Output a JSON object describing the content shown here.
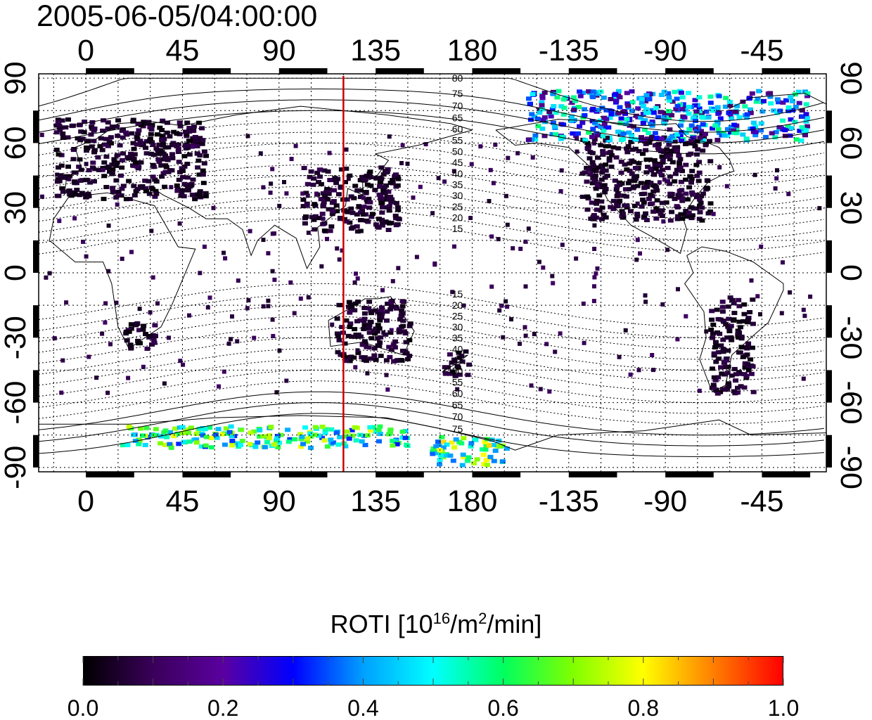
{
  "map": {
    "title": "2005-06-05/04:00:00",
    "lon_ticks": [
      "0",
      "45",
      "90",
      "135",
      "180",
      "-135",
      "-90",
      "-45"
    ],
    "lon_tick_values": [
      0,
      45,
      90,
      135,
      180,
      225,
      270,
      315
    ],
    "lat_ticks": [
      "90",
      "60",
      "30",
      "0",
      "-30",
      "-60",
      "-90"
    ],
    "lat_tick_values": [
      90,
      60,
      30,
      0,
      -30,
      -60,
      -90
    ],
    "lon_range": [
      -22,
      345
    ],
    "lat_range": [
      -92,
      92
    ],
    "grid": true,
    "meridian_marker_lon": 120,
    "meridian_marker_color": "#cc0000",
    "magnetic_lat_labels_north": [
      "80",
      "75",
      "70",
      "65",
      "60",
      "55",
      "50",
      "45",
      "40",
      "35",
      "30",
      "25",
      "20",
      "15"
    ],
    "magnetic_lat_labels_south": [
      "15",
      "20",
      "25",
      "30",
      "35",
      "40",
      "45",
      "50",
      "55",
      "60",
      "65",
      "70",
      "75"
    ]
  },
  "colorbar": {
    "title_prefix": "ROTI  [10",
    "title_exp1": "16",
    "title_mid": "/m",
    "title_exp2": "2",
    "title_suffix": "/min]",
    "ticks": [
      "0.0",
      "0.2",
      "0.4",
      "0.6",
      "0.8",
      "1.0"
    ],
    "tick_values": [
      0.0,
      0.2,
      0.4,
      0.6,
      0.8,
      1.0
    ],
    "range": [
      0.0,
      1.0
    ],
    "colors": [
      "#000000",
      "#3a005a",
      "#5a00a0",
      "#0000ff",
      "#00a0ff",
      "#00ffff",
      "#00ff60",
      "#80ff00",
      "#ffff00",
      "#ff8000",
      "#ff0000"
    ]
  },
  "chart_data": {
    "type": "heatmap",
    "title": "2005-06-05/04:00:00",
    "colorbar_label": "ROTI  [10^16/m^2/min]",
    "value_range": [
      0.0,
      1.0
    ],
    "lon_ticks": [
      "0",
      "45",
      "90",
      "135",
      "180",
      "-135",
      "-90",
      "-45"
    ],
    "lat_ticks": [
      "90",
      "60",
      "30",
      "0",
      "-30",
      "-60",
      "-90"
    ],
    "regions": [
      {
        "lon_range": [
          -15,
          55
        ],
        "lat_range": [
          35,
          72
        ],
        "roti": 0.05
      },
      {
        "lon_range": [
          100,
          145
        ],
        "lat_range": [
          20,
          50
        ],
        "roti": 0.05
      },
      {
        "lon_range": [
          230,
          290
        ],
        "lat_range": [
          25,
          65
        ],
        "roti": 0.05
      },
      {
        "lon_range": [
          290,
          310
        ],
        "lat_range": [
          -55,
          -10
        ],
        "roti": 0.05
      },
      {
        "lon_range": [
          115,
          150
        ],
        "lat_range": [
          -40,
          -12
        ],
        "roti": 0.05
      },
      {
        "lon_range": [
          165,
          178
        ],
        "lat_range": [
          -47,
          -35
        ],
        "roti": 0.05
      },
      {
        "lon_range": [
          17,
          32
        ],
        "lat_range": [
          -35,
          -22
        ],
        "roti": 0.05
      },
      {
        "lon_range": [
          205,
          335
        ],
        "lat_range": [
          62,
          85
        ],
        "roti": 0.35
      },
      {
        "lon_range": [
          15,
          150
        ],
        "lat_range": [
          -80,
          -70
        ],
        "roti": 0.55
      },
      {
        "lon_range": [
          160,
          195
        ],
        "lat_range": [
          -88,
          -75
        ],
        "roti": 0.6
      }
    ]
  }
}
